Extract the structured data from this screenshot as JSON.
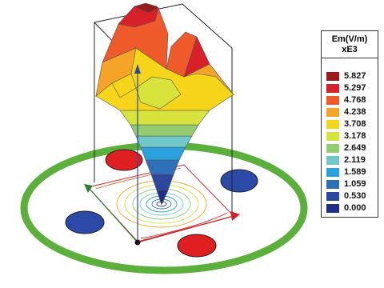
{
  "chart_data": {
    "type": "heatmap",
    "legend": {
      "title": "Em(V/m)",
      "multiplier": "xE3",
      "levels": [
        {
          "value": "5.827",
          "color": "#9b1b1b"
        },
        {
          "value": "5.297",
          "color": "#d8202a"
        },
        {
          "value": "4.768",
          "color": "#ef5a2a"
        },
        {
          "value": "4.238",
          "color": "#f6a428"
        },
        {
          "value": "3.708",
          "color": "#f4d51a"
        },
        {
          "value": "3.178",
          "color": "#d7e23a"
        },
        {
          "value": "2.649",
          "color": "#92cc6f"
        },
        {
          "value": "2.119",
          "color": "#6fc7c8"
        },
        {
          "value": "1.589",
          "color": "#2aa0dc"
        },
        {
          "value": "1.059",
          "color": "#2f6fb8"
        },
        {
          "value": "0.530",
          "color": "#2b47a0"
        },
        {
          "value": "0.000",
          "color": "#1e2f86"
        }
      ]
    },
    "ring_color": "#5ab03a",
    "electrode_colors": [
      "#e02020",
      "#2b4aa8"
    ]
  }
}
